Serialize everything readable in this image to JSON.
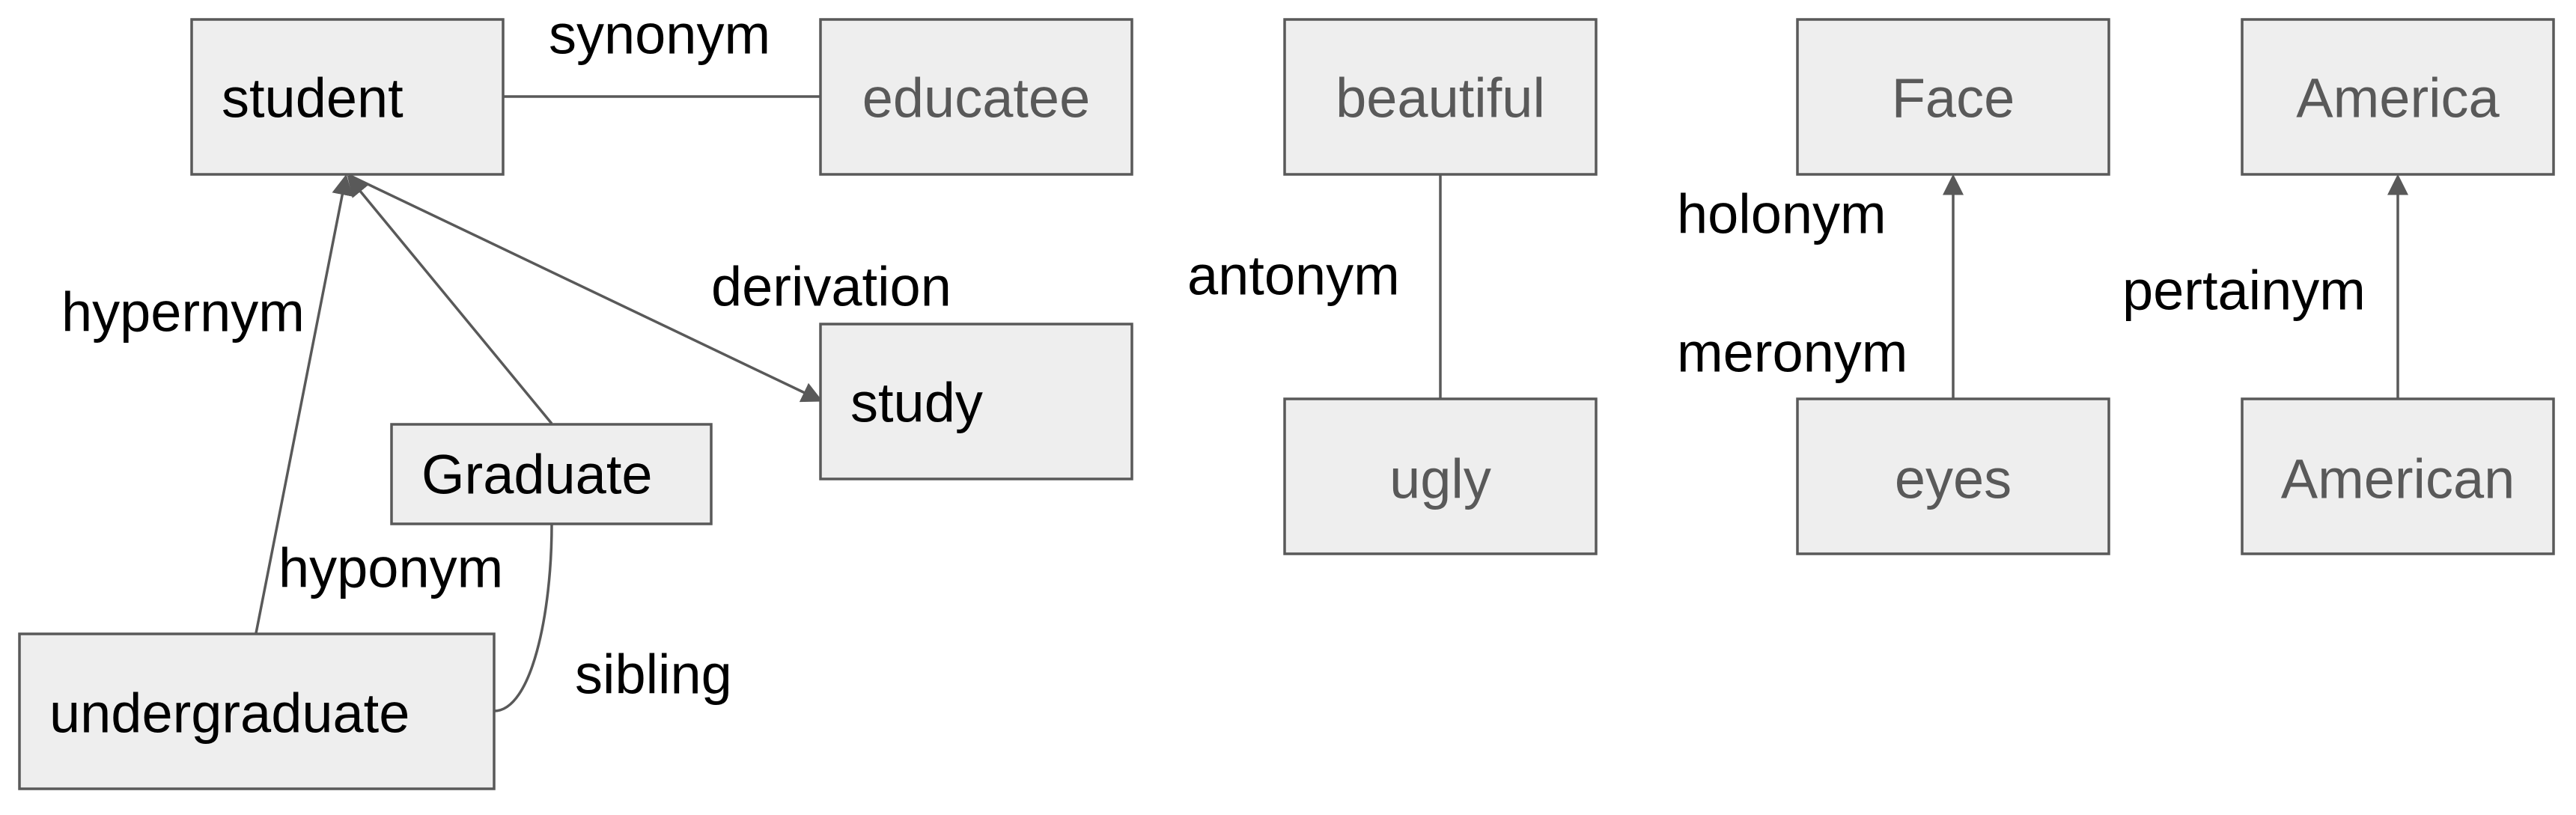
{
  "nodes": {
    "student": "student",
    "educatee": "educatee",
    "study": "study",
    "graduate": "Graduate",
    "undergraduate": "undergraduate",
    "beautiful": "beautiful",
    "ugly": "ugly",
    "face": "Face",
    "eyes": "eyes",
    "america": "America",
    "american": "American"
  },
  "relations": {
    "synonym": "synonym",
    "derivation": "derivation",
    "hypernym": "hypernym",
    "hyponym": "hyponym",
    "sibling": "sibling",
    "antonym": "antonym",
    "holonym": "holonym",
    "meronym": "meronym",
    "pertainym": "pertainym"
  },
  "colors": {
    "box_fill": "#eeeeee",
    "box_stroke": "#595959",
    "text_dark": "#000000",
    "text_gray": "#595959"
  }
}
